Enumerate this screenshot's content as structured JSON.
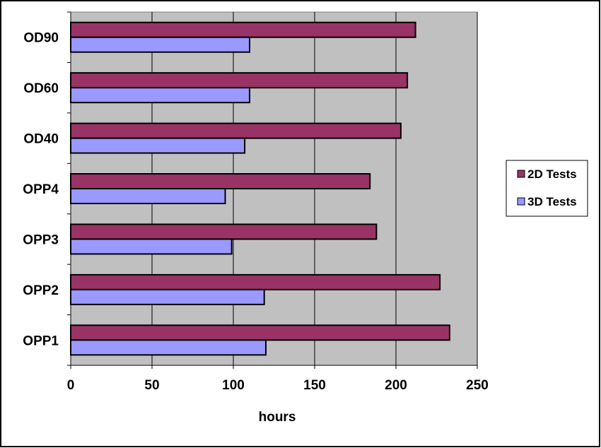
{
  "chart_data": {
    "type": "bar",
    "orientation": "horizontal",
    "categories": [
      "OD90",
      "OD60",
      "OD40",
      "OPP4",
      "OPP3",
      "OPP2",
      "OPP1"
    ],
    "series": [
      {
        "name": "2D Tests",
        "color": "#993366",
        "values": [
          212,
          207,
          203,
          184,
          188,
          227,
          233
        ]
      },
      {
        "name": "3D Tests",
        "color": "#9999ff",
        "values": [
          110,
          110,
          107,
          95,
          99,
          119,
          120
        ]
      }
    ],
    "title": "",
    "xlabel": "hours",
    "ylabel": "",
    "xlim": [
      0,
      250
    ],
    "xticks": [
      "0",
      "50",
      "100",
      "150",
      "200",
      "250"
    ],
    "grid": "vertical",
    "plot_background": "#c0c0c0",
    "legend_position": "right"
  }
}
